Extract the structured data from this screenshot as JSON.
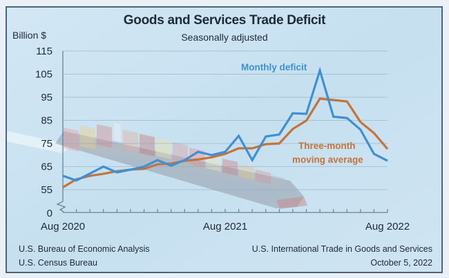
{
  "header": {
    "title": "Goods and Services Trade Deficit",
    "subtitle": "Seasonally adjusted",
    "y_unit_label": "Billion $"
  },
  "footer": {
    "source_line1": "U.S. Bureau of Economic Analysis",
    "source_line2": "U.S. Census Bureau",
    "release_line1": "U.S. International Trade in Goods and Services",
    "release_line2": "October 5, 2022"
  },
  "colors": {
    "monthly": "#3d8fd6",
    "average": "#c4733a",
    "frame": "#4d6478",
    "background": "#cfe4f2"
  },
  "chart_data": {
    "type": "line",
    "title": "Goods and Services Trade Deficit",
    "subtitle": "Seasonally adjusted",
    "ylabel": "Billion $",
    "xlabel": "",
    "ylim": [
      0,
      115
    ],
    "y_axis_break": "between 0 and 55",
    "y_ticks": [
      "115",
      "105",
      "95",
      "85",
      "75",
      "65",
      "55",
      "0"
    ],
    "y_tick_values": [
      115,
      105,
      95,
      85,
      75,
      65,
      55
    ],
    "x_tick_labels": [
      {
        "label": "Aug 2020",
        "index": 0
      },
      {
        "label": "Aug 2021",
        "index": 12
      },
      {
        "label": "Aug 2022",
        "index": 24
      }
    ],
    "x": [
      "Aug 2020",
      "Sep 2020",
      "Oct 2020",
      "Nov 2020",
      "Dec 2020",
      "Jan 2021",
      "Feb 2021",
      "Mar 2021",
      "Apr 2021",
      "May 2021",
      "Jun 2021",
      "Jul 2021",
      "Aug 2021",
      "Sep 2021",
      "Oct 2021",
      "Nov 2021",
      "Dec 2021",
      "Jan 2022",
      "Feb 2022",
      "Mar 2022",
      "Apr 2022",
      "May 2022",
      "Jun 2022",
      "Jul 2022",
      "Aug 2022"
    ],
    "grid": true,
    "series": [
      {
        "name": "Monthly deficit",
        "color": "#3d8fd6",
        "values": [
          61,
          59,
          62,
          65,
          62.5,
          63.7,
          65,
          67.8,
          65.4,
          67.8,
          71.4,
          70,
          71.4,
          78.3,
          67.8,
          78,
          78.9,
          88.1,
          87.8,
          106.6,
          86.6,
          86,
          81,
          70.5,
          67.5
        ]
      },
      {
        "name": "Three-month moving average",
        "label_lines": [
          "Three-month",
          "moving average"
        ],
        "color": "#c4733a",
        "values": [
          56,
          59.5,
          61,
          61.9,
          63,
          63.7,
          64,
          66,
          66.3,
          67.5,
          68.1,
          69,
          70.5,
          72.9,
          72.9,
          74.7,
          75,
          81.3,
          84.9,
          94.4,
          93.8,
          93.2,
          84.3,
          79.5,
          72.6
        ]
      }
    ]
  }
}
